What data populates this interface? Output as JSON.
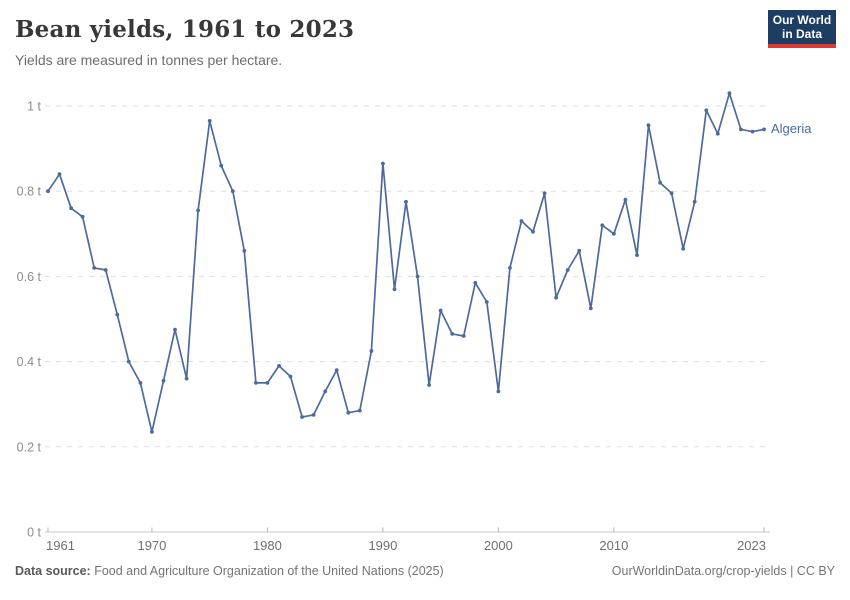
{
  "header": {
    "title": "Bean yields, 1961 to 2023",
    "subtitle": "Yields are measured in tonnes per hectare."
  },
  "logo": {
    "line1": "Our World",
    "line2": "in Data",
    "bg_color": "#1d3d63",
    "stripe_color": "#dc3a32"
  },
  "chart_data": {
    "type": "line",
    "title": "Bean yields, 1961 to 2023",
    "subtitle": "Yields are measured in tonnes per hectare.",
    "xlabel": "",
    "ylabel": "tonnes per hectare",
    "xlim": [
      1961,
      2023
    ],
    "ylim": [
      0,
      1.0
    ],
    "grid": "horizontal-dashed",
    "legend_position": "end-of-line-label",
    "x_ticks": [
      1961,
      1970,
      1980,
      1990,
      2000,
      2010,
      2023
    ],
    "y_ticks": [
      0,
      0.2,
      0.4,
      0.6,
      0.8,
      1
    ],
    "y_tick_labels": [
      "0 t",
      "0.2 t",
      "0.4 t",
      "0.6 t",
      "0.8 t",
      "1 t"
    ],
    "series": [
      {
        "name": "Algeria",
        "color": "#4c6a9c",
        "x": [
          1961,
          1962,
          1963,
          1964,
          1965,
          1966,
          1967,
          1968,
          1969,
          1970,
          1971,
          1972,
          1973,
          1974,
          1975,
          1976,
          1977,
          1978,
          1979,
          1980,
          1981,
          1982,
          1983,
          1984,
          1985,
          1986,
          1987,
          1988,
          1989,
          1990,
          1991,
          1992,
          1993,
          1994,
          1995,
          1996,
          1997,
          1998,
          1999,
          2000,
          2001,
          2002,
          2003,
          2004,
          2005,
          2006,
          2007,
          2008,
          2009,
          2010,
          2011,
          2012,
          2013,
          2014,
          2015,
          2016,
          2017,
          2018,
          2019,
          2020,
          2021,
          2022,
          2023
        ],
        "values": [
          0.8,
          0.84,
          0.76,
          0.74,
          0.62,
          0.615,
          0.51,
          0.4,
          0.35,
          0.235,
          0.355,
          0.475,
          0.36,
          0.755,
          0.965,
          0.86,
          0.8,
          0.66,
          0.35,
          0.35,
          0.39,
          0.365,
          0.27,
          0.275,
          0.33,
          0.38,
          0.28,
          0.285,
          0.425,
          0.865,
          0.57,
          0.775,
          0.6,
          0.345,
          0.52,
          0.465,
          0.46,
          0.585,
          0.54,
          0.33,
          0.62,
          0.73,
          0.705,
          0.795,
          0.55,
          0.615,
          0.66,
          0.525,
          0.72,
          0.7,
          0.78,
          0.65,
          0.955,
          0.82,
          0.795,
          0.665,
          0.775,
          0.99,
          0.935,
          1.03,
          0.945,
          0.94,
          0.945
        ]
      }
    ],
    "colors": {
      "gridline": "#dedede",
      "axis_line": "#c8c8c8",
      "tick_mark": "#b5b5b5",
      "x_label": "#707070",
      "y_label": "#8d8d8d"
    }
  },
  "footer": {
    "source_label": "Data source:",
    "source_text": " Food and Agriculture Organization of the United Nations (2025)",
    "credit": "OurWorldinData.org/crop-yields | CC BY"
  }
}
